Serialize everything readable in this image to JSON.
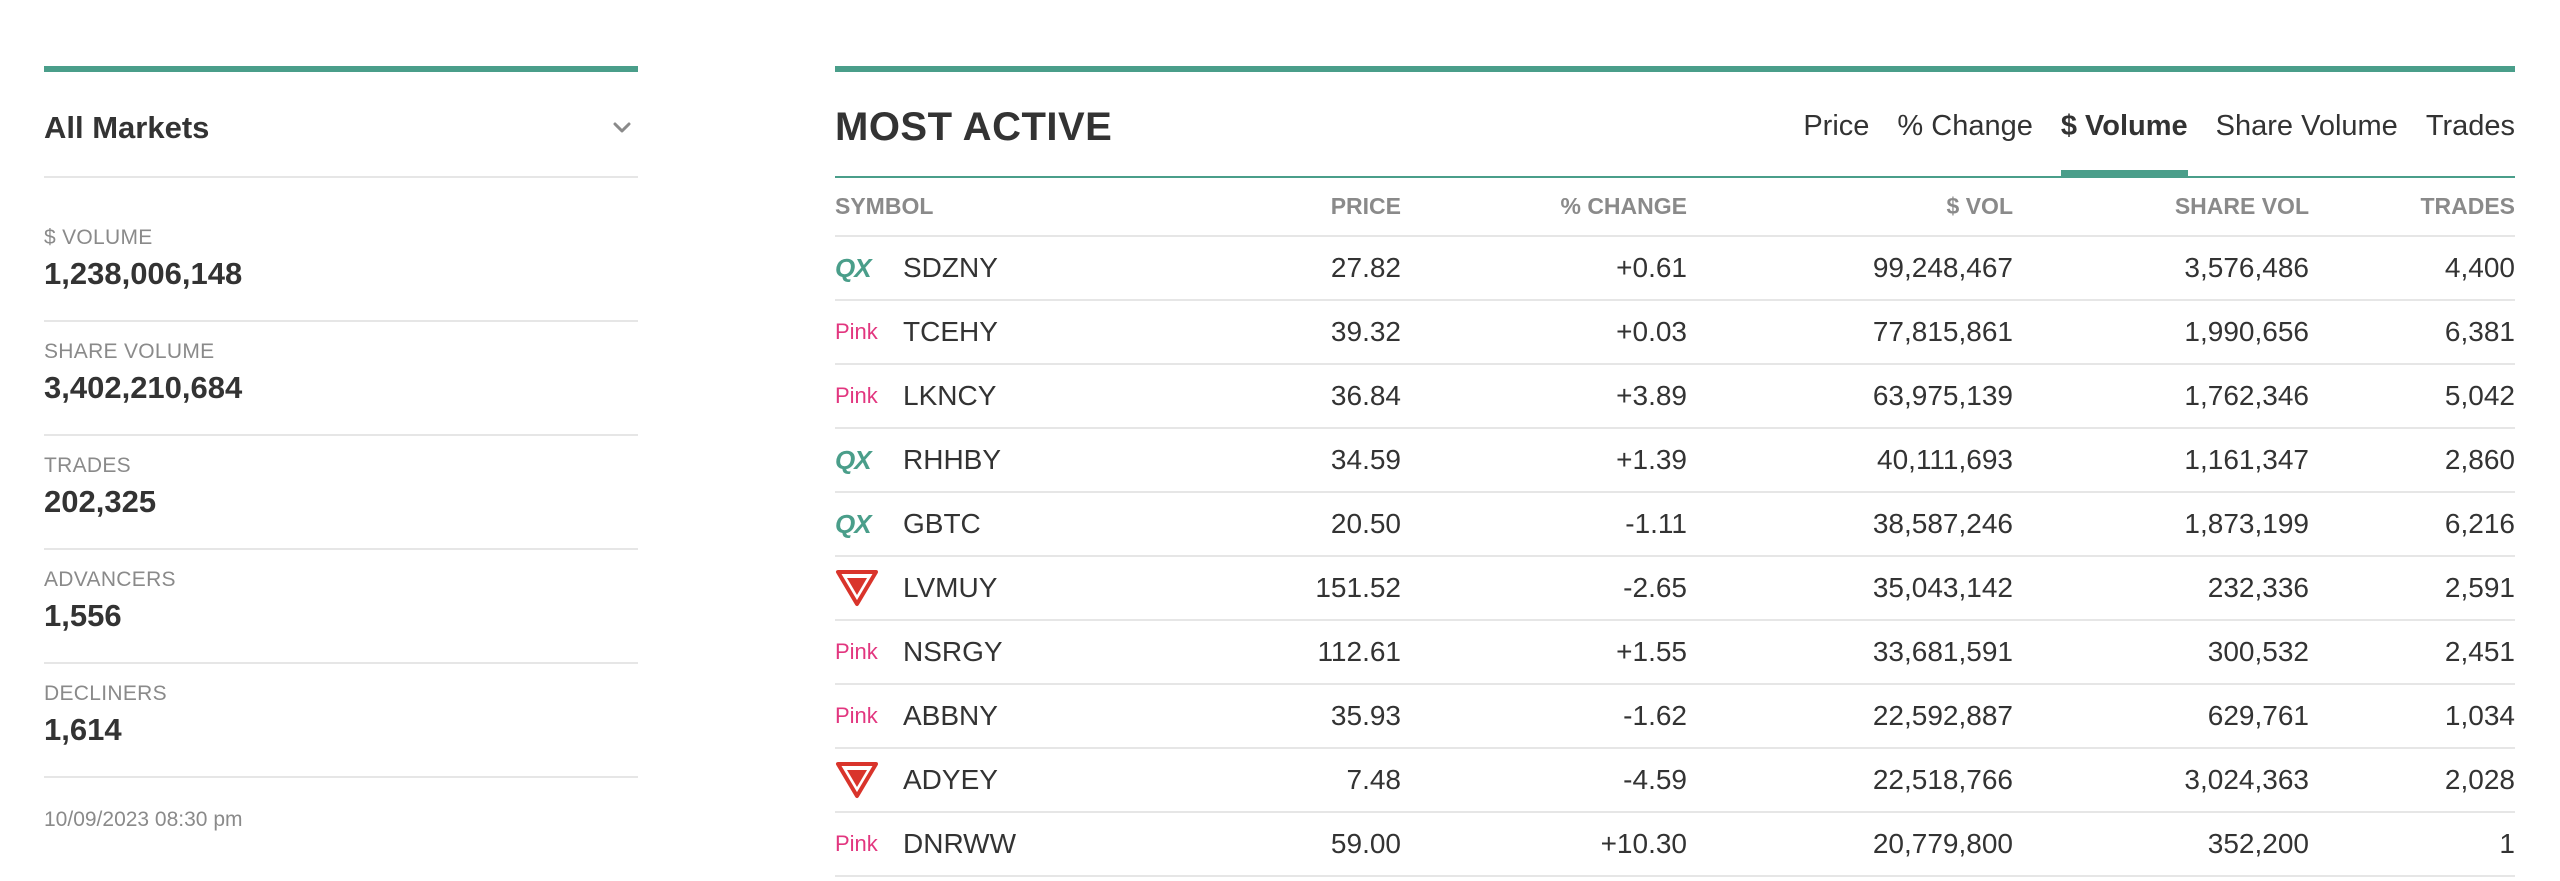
{
  "sidebar": {
    "market_selector": "All Markets",
    "stats": [
      {
        "label": "$ VOLUME",
        "value": "1,238,006,148"
      },
      {
        "label": "SHARE VOLUME",
        "value": "3,402,210,684"
      },
      {
        "label": "TRADES",
        "value": "202,325"
      },
      {
        "label": "ADVANCERS",
        "value": "1,556"
      },
      {
        "label": "DECLINERS",
        "value": "1,614"
      }
    ],
    "timestamp": "10/09/2023 08:30 pm"
  },
  "main": {
    "title": "MOST ACTIVE",
    "tabs": [
      "Price",
      "% Change",
      "$ Volume",
      "Share Volume",
      "Trades"
    ],
    "active_tab": "$ Volume",
    "columns": [
      "SYMBOL",
      "PRICE",
      "% CHANGE",
      "$ VOL",
      "SHARE VOL",
      "TRADES"
    ],
    "rows": [
      {
        "tier": "QX",
        "symbol": "SDZNY",
        "price": "27.82",
        "change": "+0.61",
        "dollar_vol": "99,248,467",
        "share_vol": "3,576,486",
        "trades": "4,400"
      },
      {
        "tier": "Pink",
        "symbol": "TCEHY",
        "price": "39.32",
        "change": "+0.03",
        "dollar_vol": "77,815,861",
        "share_vol": "1,990,656",
        "trades": "6,381"
      },
      {
        "tier": "Pink",
        "symbol": "LKNCY",
        "price": "36.84",
        "change": "+3.89",
        "dollar_vol": "63,975,139",
        "share_vol": "1,762,346",
        "trades": "5,042"
      },
      {
        "tier": "QX",
        "symbol": "RHHBY",
        "price": "34.59",
        "change": "+1.39",
        "dollar_vol": "40,111,693",
        "share_vol": "1,161,347",
        "trades": "2,860"
      },
      {
        "tier": "QX",
        "symbol": "GBTC",
        "price": "20.50",
        "change": "-1.11",
        "dollar_vol": "38,587,246",
        "share_vol": "1,873,199",
        "trades": "6,216"
      },
      {
        "tier": "Yield",
        "symbol": "LVMUY",
        "price": "151.52",
        "change": "-2.65",
        "dollar_vol": "35,043,142",
        "share_vol": "232,336",
        "trades": "2,591"
      },
      {
        "tier": "Pink",
        "symbol": "NSRGY",
        "price": "112.61",
        "change": "+1.55",
        "dollar_vol": "33,681,591",
        "share_vol": "300,532",
        "trades": "2,451"
      },
      {
        "tier": "Pink",
        "symbol": "ABBNY",
        "price": "35.93",
        "change": "-1.62",
        "dollar_vol": "22,592,887",
        "share_vol": "629,761",
        "trades": "1,034"
      },
      {
        "tier": "Yield",
        "symbol": "ADYEY",
        "price": "7.48",
        "change": "-4.59",
        "dollar_vol": "22,518,766",
        "share_vol": "3,024,363",
        "trades": "2,028"
      },
      {
        "tier": "Pink",
        "symbol": "DNRWW",
        "price": "59.00",
        "change": "+10.30",
        "dollar_vol": "20,779,800",
        "share_vol": "352,200",
        "trades": "1"
      }
    ]
  },
  "icons": {
    "dropdown": "chevron-down-icon",
    "tier_qx": "otcqx-tier-icon",
    "tier_pink": "pink-tier-icon",
    "tier_yield": "yield-warning-icon"
  },
  "colors": {
    "accent": "#4a9e8a",
    "pink_tier": "#e2367f",
    "yield_tier": "#d9342b",
    "text": "#333333",
    "muted": "#8a8a8a",
    "divider": "#e6e6e6"
  }
}
